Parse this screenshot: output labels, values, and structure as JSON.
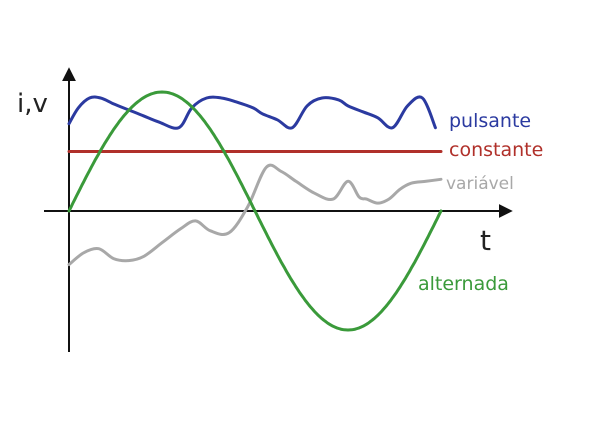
{
  "chart_data": {
    "type": "line",
    "xlabel": "t",
    "ylabel": "i,v",
    "xlim": [
      0,
      10
    ],
    "ylim": [
      -3.3,
      3.1
    ],
    "grid": false,
    "series": [
      {
        "name": "pulsante",
        "color": "#2b3aa0",
        "x": [
          0,
          0.25,
          0.55,
          0.85,
          1.2,
          1.6,
          2.0,
          2.4,
          2.95,
          3.3,
          3.7,
          4.1,
          4.5,
          4.95,
          5.2,
          5.6,
          6.0,
          6.4,
          6.8,
          7.25,
          7.5,
          7.9,
          8.3,
          8.7,
          9.1,
          9.5,
          9.85
        ],
        "values": [
          2.2,
          2.6,
          2.85,
          2.85,
          2.7,
          2.55,
          2.4,
          2.25,
          2.1,
          2.6,
          2.85,
          2.85,
          2.75,
          2.6,
          2.45,
          2.3,
          2.1,
          2.65,
          2.85,
          2.8,
          2.65,
          2.5,
          2.35,
          2.1,
          2.65,
          2.85,
          2.1
        ]
      },
      {
        "name": "constante",
        "color": "#b0302a",
        "x": [
          0,
          10
        ],
        "values": [
          1.5,
          1.5
        ]
      },
      {
        "name": "variável",
        "color": "#a8a8a8",
        "x": [
          0,
          0.4,
          0.8,
          1.2,
          1.6,
          2.0,
          2.5,
          3.0,
          3.4,
          3.8,
          4.3,
          4.8,
          5.3,
          5.7,
          6.1,
          6.6,
          7.1,
          7.5,
          7.8,
          8.0,
          8.3,
          8.6,
          8.9,
          9.2,
          9.6,
          10.0
        ],
        "values": [
          -1.35,
          -1.05,
          -0.95,
          -1.2,
          -1.25,
          -1.15,
          -0.8,
          -0.45,
          -0.25,
          -0.5,
          -0.55,
          0.1,
          1.1,
          1.0,
          0.75,
          0.45,
          0.3,
          0.75,
          0.35,
          0.3,
          0.2,
          0.3,
          0.55,
          0.7,
          0.75,
          0.8
        ]
      },
      {
        "name": "alternada",
        "color": "#3a9a3a",
        "function": "sine",
        "amplitude": 3.0,
        "period": 10.0
      }
    ]
  }
}
